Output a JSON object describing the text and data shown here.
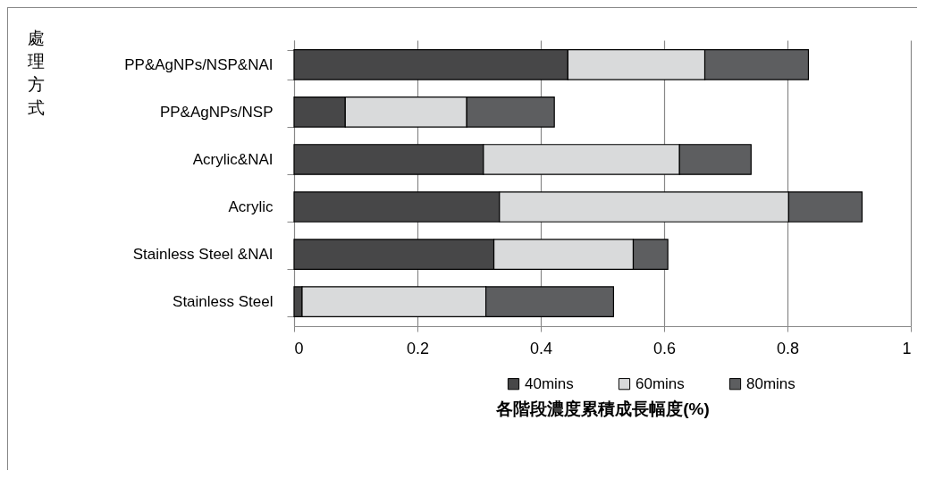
{
  "chart_data": {
    "type": "bar",
    "orientation": "horizontal",
    "stacked": true,
    "xlabel": "各階段濃度累積成長幅度(%)",
    "ylabel": "處理方式",
    "categories": [
      "PP&AgNPs/NSP&NAI",
      "PP&AgNPs/NSP",
      "Acrylic&NAI",
      "Acrylic",
      "Stainless Steel &NAI",
      "Stainless Steel"
    ],
    "series": [
      {
        "name": "40mins",
        "color": "#474748",
        "values": [
          0.444,
          0.083,
          0.307,
          0.333,
          0.324,
          0.013
        ]
      },
      {
        "name": "60mins",
        "color": "#d9dadb",
        "values": [
          0.222,
          0.197,
          0.318,
          0.469,
          0.226,
          0.298
        ]
      },
      {
        "name": "80mins",
        "color": "#5d5e60",
        "values": [
          0.168,
          0.142,
          0.116,
          0.119,
          0.056,
          0.207
        ]
      }
    ],
    "xlim": [
      0,
      1
    ],
    "xticks": [
      0,
      0.2,
      0.4,
      0.6,
      0.8,
      1
    ],
    "grid": "x",
    "legend": "bottom"
  }
}
